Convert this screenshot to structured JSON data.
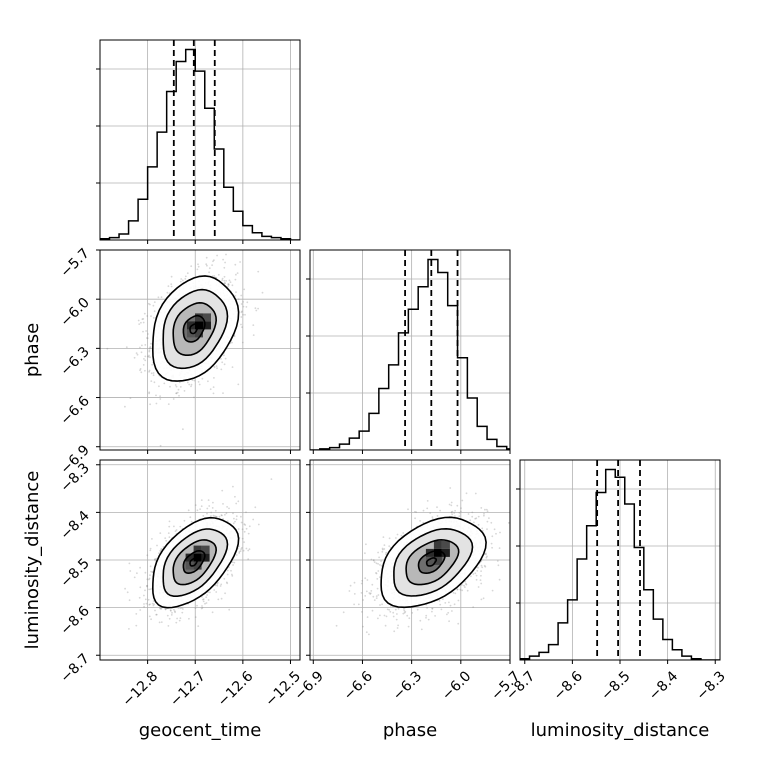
{
  "chart_data": {
    "type": "corner",
    "parameters": [
      "geocent_time",
      "phase",
      "luminosity_distance"
    ],
    "axis_labels": {
      "bottom": [
        "geocent_time",
        "phase",
        "luminosity_distance"
      ],
      "left": [
        "phase",
        "luminosity_distance"
      ]
    },
    "ranges": {
      "geocent_time": [
        -12.9,
        -12.48
      ],
      "phase": [
        -6.92,
        -5.7
      ],
      "luminosity_distance": [
        -8.71,
        -8.29
      ]
    },
    "ticks": {
      "geocent_time": [
        -12.8,
        -12.7,
        -12.6,
        -12.5
      ],
      "phase": [
        -6.9,
        -6.6,
        -6.3,
        -6.0,
        -5.7
      ],
      "luminosity_distance": [
        -8.7,
        -8.6,
        -8.5,
        -8.4,
        -8.3
      ]
    },
    "tick_labels": {
      "geocent_time": [
        "−12.8",
        "−12.7",
        "−12.6",
        "−12.5"
      ],
      "phase": [
        "−6.9",
        "−6.6",
        "−6.3",
        "−6.0",
        "−5.7"
      ],
      "luminosity_distance": [
        "−8.7",
        "−8.6",
        "−8.5",
        "−8.4",
        "−8.3"
      ]
    },
    "quantiles": {
      "geocent_time": [
        -12.745,
        -12.703,
        -12.659
      ],
      "phase": [
        -6.34,
        -6.18,
        -6.02
      ],
      "luminosity_distance": [
        -8.548,
        -8.504,
        -8.458
      ]
    },
    "histograms": {
      "geocent_time": {
        "edges": [
          -12.9,
          -12.88,
          -12.86,
          -12.84,
          -12.82,
          -12.8,
          -12.78,
          -12.76,
          -12.74,
          -12.72,
          -12.7,
          -12.68,
          -12.66,
          -12.64,
          -12.62,
          -12.6,
          -12.58,
          -12.56,
          -12.54,
          -12.52,
          -12.5,
          -12.48
        ],
        "values": [
          1,
          2,
          5,
          16,
          34,
          61,
          90,
          124,
          149,
          159,
          141,
          110,
          76,
          44,
          24,
          12,
          6,
          3,
          2,
          1,
          0
        ]
      },
      "phase": {
        "edges": [
          -6.92,
          -6.86,
          -6.8,
          -6.74,
          -6.68,
          -6.62,
          -6.56,
          -6.5,
          -6.44,
          -6.38,
          -6.32,
          -6.26,
          -6.2,
          -6.14,
          -6.08,
          -6.02,
          -5.96,
          -5.9,
          -5.84,
          -5.78,
          -5.72,
          -5.7
        ],
        "values": [
          0,
          1,
          2,
          5,
          10,
          16,
          31,
          52,
          72,
          99,
          119,
          138,
          161,
          150,
          122,
          78,
          44,
          20,
          9,
          3,
          1
        ]
      },
      "luminosity_distance": {
        "edges": [
          -8.71,
          -8.69,
          -8.67,
          -8.65,
          -8.63,
          -8.61,
          -8.59,
          -8.57,
          -8.55,
          -8.53,
          -8.51,
          -8.49,
          -8.47,
          -8.45,
          -8.43,
          -8.41,
          -8.39,
          -8.37,
          -8.35,
          -8.33,
          -8.31,
          -8.29
        ],
        "values": [
          1,
          3,
          6,
          12,
          29,
          47,
          79,
          105,
          131,
          149,
          143,
          122,
          88,
          55,
          32,
          16,
          8,
          3,
          1,
          0,
          0
        ]
      }
    },
    "pairs": [
      {
        "x": "geocent_time",
        "y": "phase",
        "center": [
          -12.703,
          -6.18
        ],
        "sigma": [
          0.045,
          0.16
        ],
        "rho": 0.3,
        "peak": [
          -12.692,
          -6.16
        ]
      },
      {
        "x": "geocent_time",
        "y": "luminosity_distance",
        "center": [
          -12.703,
          -8.504
        ],
        "sigma": [
          0.045,
          0.047
        ],
        "rho": 0.5,
        "peak": [
          -12.695,
          -8.495
        ]
      },
      {
        "x": "phase",
        "y": "luminosity_distance",
        "center": [
          -6.18,
          -8.504
        ],
        "sigma": [
          0.16,
          0.047
        ],
        "rho": 0.42,
        "peak": [
          -6.14,
          -8.485
        ]
      }
    ],
    "contour_levels_sigma": [
      0.5,
      1.0,
      1.5,
      2.0
    ],
    "grid": true,
    "colors": {
      "line": "#000000",
      "grid": "#b0b0b0",
      "samples": "#8c8c8c"
    }
  }
}
